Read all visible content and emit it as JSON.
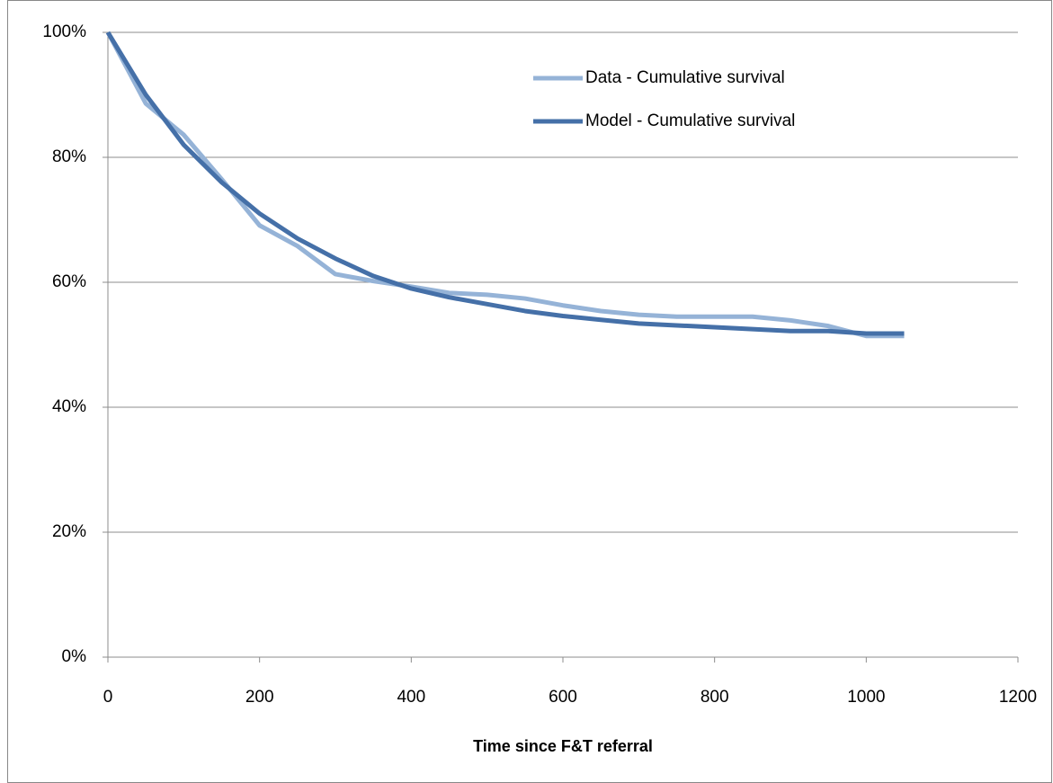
{
  "chart_data": {
    "type": "line",
    "x_label": "Time since F&T referral",
    "x": [
      0,
      50,
      100,
      150,
      200,
      250,
      300,
      350,
      400,
      450,
      500,
      550,
      600,
      650,
      700,
      750,
      800,
      850,
      900,
      950,
      1000,
      1050
    ],
    "series": [
      {
        "name": "Data - Cumulative survival",
        "color": "#95b3d7",
        "values": [
          100,
          88.6,
          83.6,
          76.5,
          69.1,
          65.8,
          61.3,
          60.2,
          59.3,
          58.3,
          58.0,
          57.4,
          56.3,
          55.4,
          54.8,
          54.5,
          54.5,
          54.5,
          53.9,
          53.0,
          51.4,
          51.4
        ]
      },
      {
        "name": "Model - Cumulative survival",
        "color": "#4570a8",
        "values": [
          100,
          90.0,
          82.0,
          76.0,
          71.0,
          67.0,
          63.8,
          61.0,
          59.0,
          57.6,
          56.5,
          55.4,
          54.6,
          54.0,
          53.4,
          53.1,
          52.8,
          52.5,
          52.2,
          52.2,
          51.8,
          51.8
        ]
      }
    ],
    "xlim": [
      0,
      1200
    ],
    "xticks": [
      0,
      200,
      400,
      600,
      800,
      1000,
      1200
    ],
    "ylim": [
      0,
      100
    ],
    "yticks": [
      {
        "value": 0,
        "label": "0%"
      },
      {
        "value": 20,
        "label": "20%"
      },
      {
        "value": 40,
        "label": "40%"
      },
      {
        "value": 60,
        "label": "60%"
      },
      {
        "value": 80,
        "label": "80%"
      },
      {
        "value": 100,
        "label": "100%"
      }
    ],
    "grid": true,
    "legend": "top-right"
  }
}
